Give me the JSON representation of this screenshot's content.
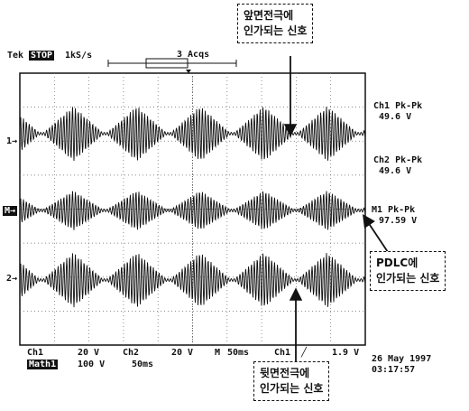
{
  "header": {
    "brand": "Tek",
    "mode_badge": "STOP",
    "sample_rate": "1kS/s",
    "acquisitions": "3 Acqs"
  },
  "channel_markers": {
    "ch1": "1→",
    "ch2": "2→",
    "math": "M→"
  },
  "measurements": [
    {
      "title": "Ch1 Pk-Pk",
      "value": "49.6 V"
    },
    {
      "title": "Ch2 Pk-Pk",
      "value": "49.6 V"
    },
    {
      "title": "M1 Pk-Pk",
      "value": "97.59 V"
    }
  ],
  "footer": {
    "ch1_label": "Ch1",
    "ch1_scale": "20 V",
    "ch2_label": "Ch2",
    "ch2_scale": "20 V",
    "timebase_label": "M",
    "timebase": "50ms",
    "trigger_source": "Ch1",
    "trigger_slope": "╱",
    "trigger_level": "1.9 V",
    "math_badge": "Math1",
    "math_scale": "100 V",
    "math_timebase": "50ms",
    "date": "26 May 1997",
    "time": "03:17:57"
  },
  "annotations": {
    "top_right": [
      "앞면전극에",
      "인가되는 신호"
    ],
    "right": [
      "PDLC에",
      "인가되는 신호"
    ],
    "bottom": [
      "뒷면전극에",
      "인가되는 신호"
    ]
  },
  "chart_data": {
    "type": "line",
    "title": "",
    "xlabel": "",
    "ylabel": "",
    "x_unit": "ms",
    "xlim": [
      0,
      500
    ],
    "grid": true,
    "divisions": {
      "x": 10,
      "y": 8
    },
    "series": [
      {
        "name": "Ch1",
        "vertical_scale_V_per_div": 20,
        "peak_to_peak_V": 49.6,
        "envelope": "diamond bursts",
        "burst_period_ms": 92
      },
      {
        "name": "Ch2",
        "vertical_scale_V_per_div": 20,
        "peak_to_peak_V": 49.6,
        "envelope": "diamond bursts",
        "burst_period_ms": 92
      },
      {
        "name": "M1",
        "vertical_scale_V_per_div": 100,
        "peak_to_peak_V": 97.59,
        "envelope": "diamond bursts",
        "burst_period_ms": 92
      }
    ]
  },
  "colors": {
    "ink": "#111111",
    "background": "#ffffff",
    "grid": "#555555"
  }
}
